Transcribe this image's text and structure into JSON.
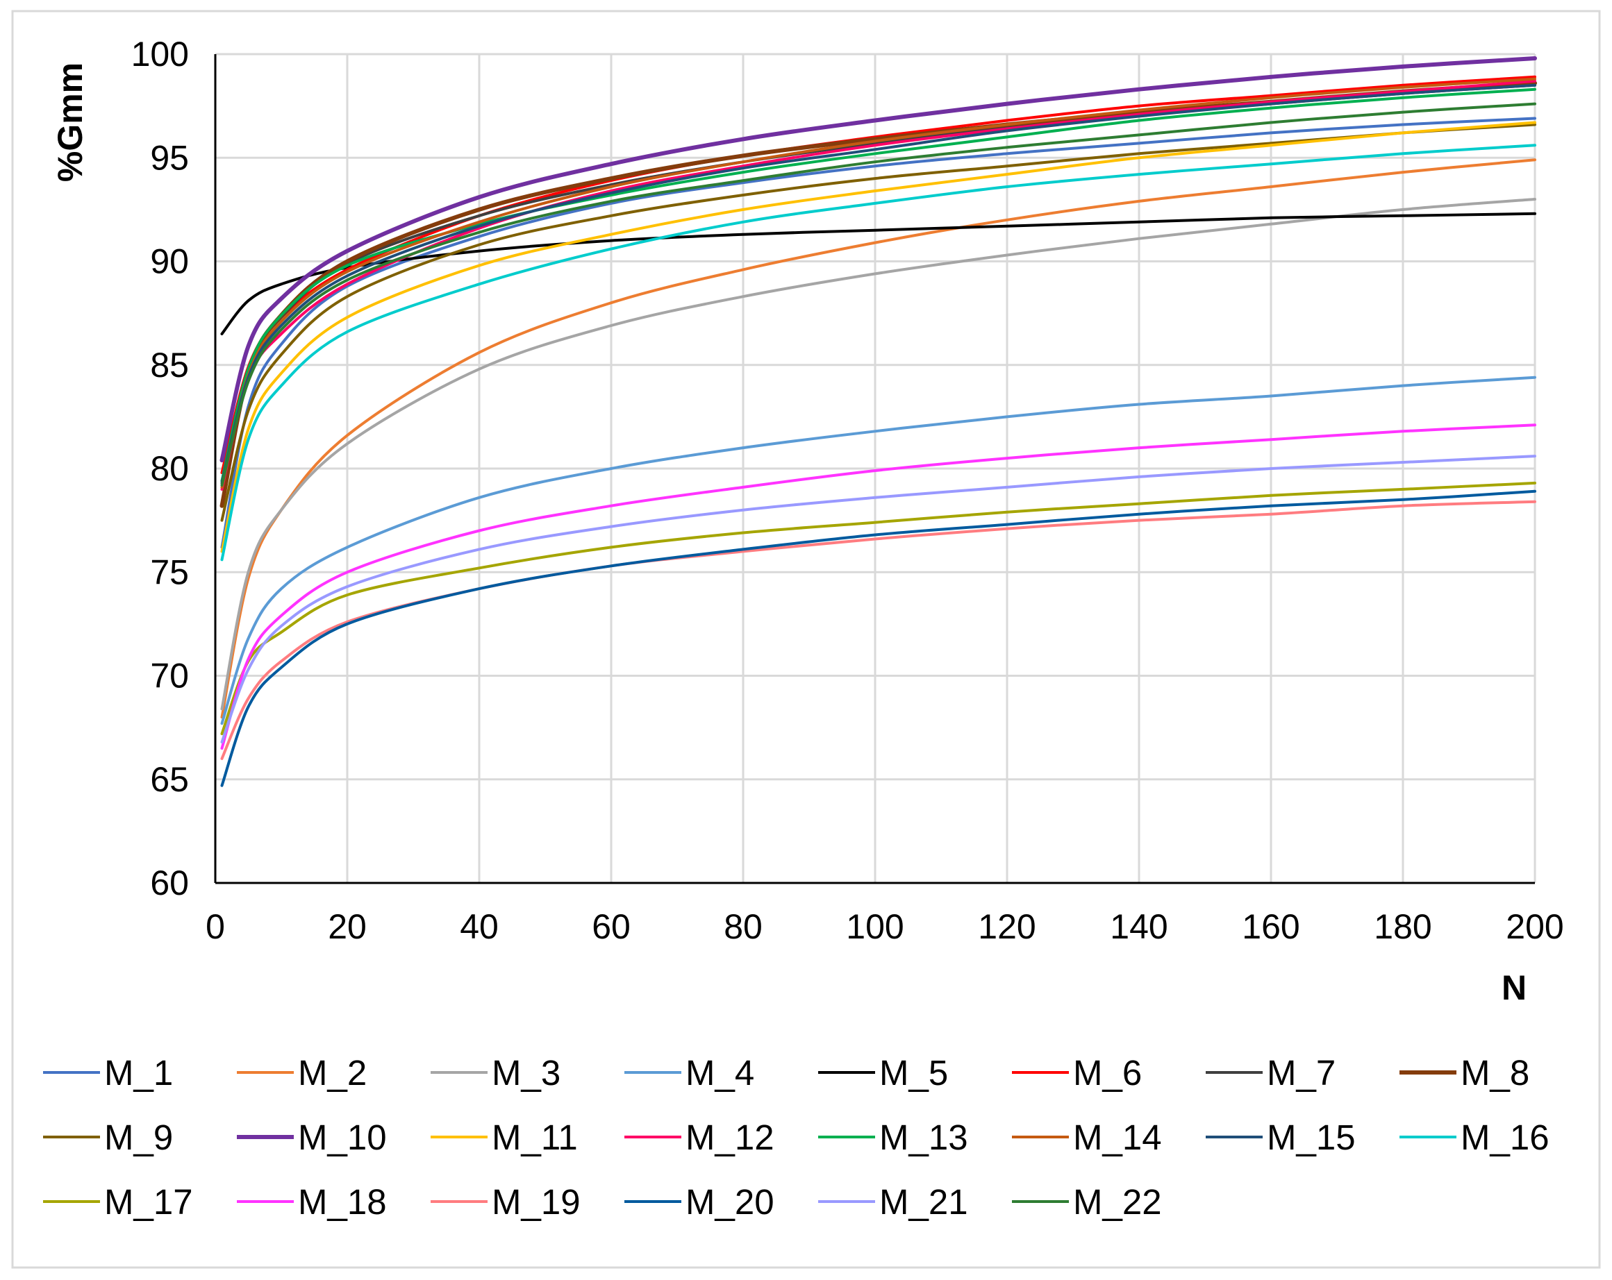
{
  "chart_data": {
    "type": "line",
    "title": "",
    "xlabel": "N",
    "ylabel": "%Gmm",
    "xlim": [
      0,
      200
    ],
    "ylim": [
      60,
      100
    ],
    "xticks": [
      0,
      20,
      40,
      60,
      80,
      100,
      120,
      140,
      160,
      180,
      200
    ],
    "yticks": [
      60,
      65,
      70,
      75,
      80,
      85,
      90,
      95,
      100
    ],
    "x_tick_labels": [
      "0",
      "20",
      "40",
      "60",
      "80",
      "100",
      "120",
      "140",
      "160",
      "180",
      "200"
    ],
    "y_tick_labels": [
      "60",
      "65",
      "70",
      "75",
      "80",
      "85",
      "90",
      "95",
      "100"
    ],
    "grid": true,
    "legend_position": "bottom",
    "x": [
      1,
      5,
      10,
      20,
      40,
      60,
      80,
      100,
      120,
      140,
      160,
      180,
      200
    ],
    "series": [
      {
        "name": "M_1",
        "color": "#4472C4",
        "values": [
          76.2,
          83.0,
          86.0,
          88.8,
          91.2,
          92.8,
          93.8,
          94.6,
          95.2,
          95.7,
          96.2,
          96.6,
          96.9
        ]
      },
      {
        "name": "M_2",
        "color": "#ED7D31",
        "values": [
          68.0,
          74.7,
          78.0,
          81.6,
          85.6,
          88.0,
          89.6,
          90.9,
          92.0,
          92.9,
          93.6,
          94.3,
          94.9
        ]
      },
      {
        "name": "M_3",
        "color": "#A5A5A5",
        "values": [
          68.4,
          75.0,
          78.0,
          81.2,
          84.8,
          86.9,
          88.3,
          89.4,
          90.3,
          91.1,
          91.8,
          92.5,
          93.0
        ]
      },
      {
        "name": "M_4",
        "color": "#5B9BD5",
        "values": [
          67.7,
          71.8,
          74.2,
          76.2,
          78.6,
          80.0,
          81.0,
          81.8,
          82.5,
          83.1,
          83.5,
          84.0,
          84.4
        ]
      },
      {
        "name": "M_5",
        "color": "#000000",
        "values": [
          86.5,
          88.1,
          88.9,
          89.7,
          90.5,
          91.0,
          91.3,
          91.5,
          91.7,
          91.9,
          92.1,
          92.2,
          92.3
        ]
      },
      {
        "name": "M_6",
        "color": "#FF0000",
        "values": [
          79.8,
          84.9,
          87.3,
          89.6,
          92.2,
          93.9,
          95.1,
          96.0,
          96.8,
          97.5,
          98.0,
          98.5,
          98.9
        ]
      },
      {
        "name": "M_7",
        "color": "#3F3F3F",
        "values": [
          79.4,
          84.8,
          87.3,
          89.9,
          92.2,
          93.7,
          94.8,
          95.7,
          96.5,
          97.1,
          97.6,
          98.1,
          98.5
        ]
      },
      {
        "name": "M_8",
        "color": "#843C0C",
        "values": [
          78.2,
          84.6,
          87.4,
          90.0,
          92.5,
          94.0,
          95.1,
          95.9,
          96.6,
          97.2,
          97.7,
          98.2,
          98.6
        ]
      },
      {
        "name": "M_9",
        "color": "#7F6000",
        "values": [
          77.5,
          82.8,
          85.5,
          88.3,
          90.8,
          92.2,
          93.2,
          94.0,
          94.6,
          95.2,
          95.7,
          96.2,
          96.6
        ]
      },
      {
        "name": "M_10",
        "color": "#7030A0",
        "values": [
          80.4,
          85.9,
          88.2,
          90.5,
          93.1,
          94.7,
          95.9,
          96.8,
          97.6,
          98.3,
          98.9,
          99.4,
          99.8
        ]
      },
      {
        "name": "M_11",
        "color": "#FFC000",
        "values": [
          76.0,
          81.9,
          84.6,
          87.3,
          89.8,
          91.3,
          92.5,
          93.4,
          94.2,
          95.0,
          95.6,
          96.2,
          96.7
        ]
      },
      {
        "name": "M_12",
        "color": "#FF0066",
        "values": [
          79.0,
          84.3,
          86.5,
          88.9,
          91.6,
          93.4,
          94.6,
          95.6,
          96.4,
          97.1,
          97.7,
          98.2,
          98.7
        ]
      },
      {
        "name": "M_13",
        "color": "#00B050",
        "values": [
          79.4,
          84.8,
          87.4,
          89.8,
          91.8,
          93.2,
          94.3,
          95.2,
          96.0,
          96.8,
          97.4,
          97.9,
          98.3
        ]
      },
      {
        "name": "M_14",
        "color": "#C55A11",
        "values": [
          79.1,
          84.5,
          87.1,
          89.5,
          91.9,
          93.6,
          94.8,
          95.8,
          96.6,
          97.3,
          97.9,
          98.4,
          98.8
        ]
      },
      {
        "name": "M_15",
        "color": "#1F4E79",
        "values": [
          79.3,
          84.4,
          86.9,
          89.3,
          91.7,
          93.3,
          94.5,
          95.4,
          96.3,
          97.0,
          97.6,
          98.1,
          98.5
        ]
      },
      {
        "name": "M_16",
        "color": "#00CCCC",
        "values": [
          75.6,
          81.4,
          84.0,
          86.6,
          88.9,
          90.6,
          91.9,
          92.8,
          93.6,
          94.2,
          94.7,
          95.2,
          95.6
        ]
      },
      {
        "name": "M_17",
        "color": "#A5A500",
        "values": [
          67.2,
          70.7,
          72.1,
          73.9,
          75.2,
          76.2,
          76.9,
          77.4,
          77.9,
          78.3,
          78.7,
          79.0,
          79.3
        ]
      },
      {
        "name": "M_18",
        "color": "#FF33FF",
        "values": [
          66.5,
          70.8,
          72.9,
          75.0,
          77.0,
          78.2,
          79.1,
          79.9,
          80.5,
          81.0,
          81.4,
          81.8,
          82.1
        ]
      },
      {
        "name": "M_19",
        "color": "#FF7C80",
        "values": [
          66.0,
          68.9,
          70.7,
          72.6,
          74.2,
          75.3,
          76.0,
          76.6,
          77.1,
          77.5,
          77.8,
          78.2,
          78.4
        ]
      },
      {
        "name": "M_20",
        "color": "#005A9E",
        "values": [
          64.7,
          68.5,
          70.4,
          72.5,
          74.2,
          75.3,
          76.1,
          76.8,
          77.3,
          77.8,
          78.2,
          78.5,
          78.9
        ]
      },
      {
        "name": "M_21",
        "color": "#9999FF",
        "values": [
          66.8,
          70.3,
          72.4,
          74.3,
          76.1,
          77.2,
          78.0,
          78.6,
          79.1,
          79.6,
          80.0,
          80.3,
          80.6
        ]
      },
      {
        "name": "M_22",
        "color": "#2E7D32",
        "values": [
          79.2,
          84.2,
          86.7,
          89.1,
          91.4,
          92.9,
          93.9,
          94.8,
          95.5,
          96.1,
          96.7,
          97.2,
          97.6
        ]
      }
    ]
  }
}
